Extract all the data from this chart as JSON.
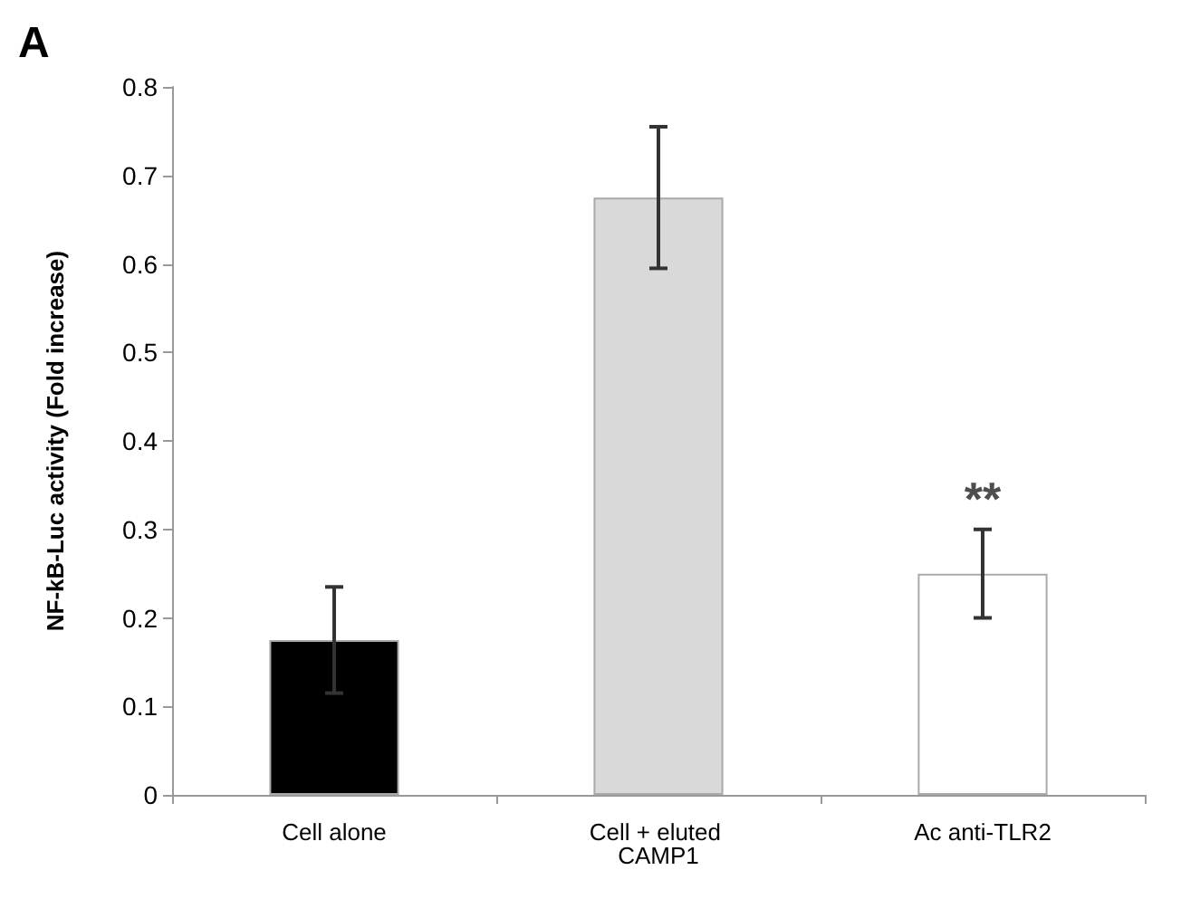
{
  "chart_data": {
    "type": "bar",
    "ylabel": "NF-kB-Luc activity (Fold increase)",
    "categories": [
      "Cell alone",
      "Cell + eluted CAMP1",
      "Ac anti-TLR2"
    ],
    "values": [
      0.175,
      0.675,
      0.25
    ],
    "colors": [
      "#000000",
      "#d9d9d9",
      "#ffffff"
    ],
    "errors": [
      0.06,
      0.08,
      0.05
    ],
    "ylim": [
      0,
      0.8
    ],
    "yticks": [
      0,
      0.1,
      0.2,
      0.3,
      0.4,
      0.5,
      0.6,
      0.7,
      0.8
    ],
    "grid": false,
    "annotations": [
      "A",
      {
        "text": "**",
        "x": "Ac anti-TLR2",
        "y": 0.3
      }
    ]
  }
}
